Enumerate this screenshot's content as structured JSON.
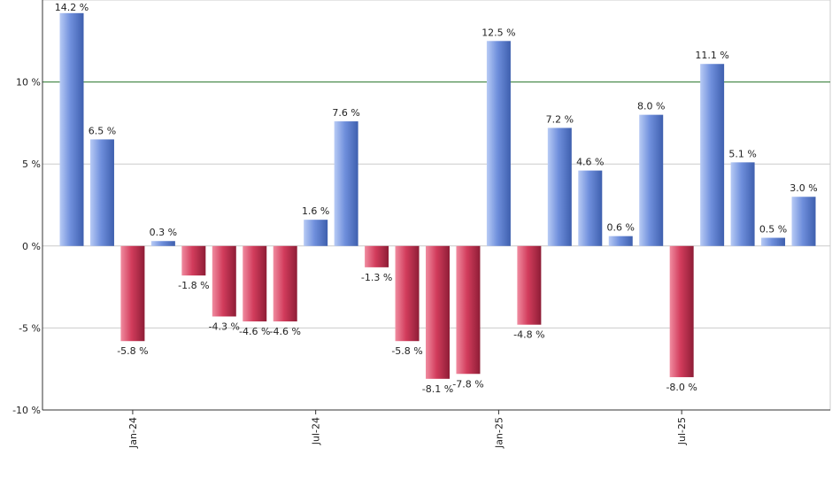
{
  "chart_data": {
    "type": "bar",
    "categories": [
      null,
      null,
      "Jan-24",
      null,
      null,
      null,
      null,
      null,
      "Jul-24",
      null,
      null,
      null,
      null,
      null,
      "Jan-25",
      null,
      null,
      null,
      null,
      null,
      "Jul-25",
      null,
      null,
      null,
      null
    ],
    "values": [
      14.2,
      6.5,
      -5.8,
      0.3,
      -1.8,
      -4.3,
      -4.6,
      -4.6,
      1.6,
      7.6,
      -1.3,
      -5.8,
      -8.1,
      -7.8,
      12.5,
      -4.8,
      7.2,
      4.6,
      0.6,
      8.0,
      -8.0,
      11.1,
      5.1,
      0.5,
      3.0
    ],
    "value_labels": [
      "14.2 %",
      "6.5 %",
      "-5.8 %",
      "0.3 %",
      "-1.8 %",
      "-4.3 %",
      "-4.6 %",
      "-4.6 %",
      "1.6 %",
      "7.6 %",
      "-1.3 %",
      "-5.8 %",
      "-8.1 %",
      "-7.8 %",
      "12.5 %",
      "-4.8 %",
      "7.2 %",
      "4.6 %",
      "0.6 %",
      "8.0 %",
      "-8.0 %",
      "11.1 %",
      "5.1 %",
      "0.5 %",
      "3.0 %"
    ],
    "positive_color": "#6f8fdc",
    "negative_color": "#d23c5c",
    "ylim": [
      -10,
      15
    ],
    "yticks": [
      {
        "value": -10,
        "label": "-10 %"
      },
      {
        "value": -5,
        "label": "-5 %"
      },
      {
        "value": 0,
        "label": "0 %"
      },
      {
        "value": 5,
        "label": "5 %"
      },
      {
        "value": 10,
        "label": "10 %"
      }
    ],
    "grid": true,
    "reference_line": 10,
    "reference_color": "#2e7d32"
  }
}
